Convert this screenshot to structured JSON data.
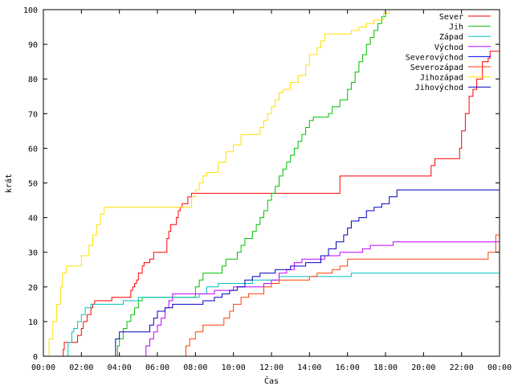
{
  "chart_data": {
    "type": "line",
    "title": "",
    "xlabel": "Čas",
    "ylabel": "krát",
    "xlim": [
      0,
      24
    ],
    "ylim": [
      0,
      100
    ],
    "x_ticks": [
      "00:00",
      "02:00",
      "04:00",
      "06:00",
      "08:00",
      "10:00",
      "12:00",
      "14:00",
      "16:00",
      "18:00",
      "20:00",
      "22:00",
      "00:00"
    ],
    "y_ticks": [
      "0",
      "10",
      "20",
      "30",
      "40",
      "50",
      "60",
      "70",
      "80",
      "90",
      "100"
    ],
    "grid": false,
    "legend_position": "top-right",
    "series": [
      {
        "name": "Sever",
        "color": "#ff0000",
        "x": [
          0.95,
          1.05,
          1.1,
          1.8,
          1.9,
          2.0,
          2.1,
          2.3,
          2.4,
          2.5,
          2.6,
          2.7,
          2.8,
          3.2,
          3.5,
          3.6,
          3.7,
          3.8,
          4.6,
          4.7,
          4.8,
          4.9,
          5.0,
          5.2,
          5.3,
          5.5,
          5.6,
          5.8,
          6.2,
          6.5,
          6.6,
          6.7,
          7.0,
          7.1,
          7.2,
          7.3,
          7.4,
          7.6,
          7.8,
          8.0,
          8.2,
          10.4,
          15.4,
          15.6,
          15.8,
          19.9,
          20.4,
          20.6,
          21.7,
          21.9,
          22.0,
          22.2,
          22.4,
          22.6,
          22.8,
          23.1,
          23.4,
          23.5,
          24.0
        ],
        "y": [
          0,
          2,
          4,
          6,
          6,
          8,
          10,
          12,
          12,
          14,
          15,
          16,
          16,
          16,
          16,
          17,
          17,
          17,
          19,
          20,
          21,
          22,
          24,
          26,
          27,
          27,
          28,
          30,
          30,
          34,
          36,
          38,
          40,
          42,
          43,
          44,
          44,
          46,
          47,
          47,
          47,
          47,
          47,
          52,
          52,
          52,
          55,
          57,
          57,
          60,
          65,
          70,
          75,
          77,
          80,
          85,
          86,
          88,
          88
        ]
      },
      {
        "name": "Jih",
        "color": "#00c000",
        "x": [
          3.75,
          3.9,
          4.0,
          4.2,
          4.4,
          4.6,
          4.8,
          5.0,
          5.2,
          5.4,
          6.0,
          7.8,
          8.0,
          8.2,
          8.4,
          8.6,
          8.8,
          9.4,
          9.6,
          10.0,
          10.2,
          10.4,
          10.6,
          11.0,
          11.2,
          11.4,
          11.6,
          11.8,
          12.0,
          12.2,
          12.4,
          12.6,
          12.8,
          13.0,
          13.2,
          13.4,
          13.6,
          13.8,
          14.0,
          14.2,
          14.4,
          14.6,
          14.8,
          15.0,
          15.2,
          15.6,
          16.0,
          16.2,
          16.4,
          16.6,
          16.8,
          17.0,
          17.2,
          17.4,
          17.6,
          17.8,
          18.0,
          18.2
        ],
        "y": [
          0,
          3,
          5,
          8,
          10,
          12,
          14,
          16,
          17,
          17,
          17,
          17,
          20,
          22,
          24,
          24,
          24,
          26,
          28,
          28,
          30,
          32,
          34,
          36,
          38,
          40,
          42,
          45,
          47,
          49,
          52,
          54,
          56,
          58,
          60,
          62,
          64,
          66,
          68,
          69,
          69,
          69,
          69,
          70,
          72,
          74,
          77,
          79,
          82,
          85,
          87,
          90,
          92,
          94,
          96,
          98,
          100,
          100
        ]
      },
      {
        "name": "Západ",
        "color": "#00c0c0",
        "x": [
          1.1,
          1.3,
          1.5,
          1.6,
          1.8,
          2.0,
          2.2,
          2.5,
          3.0,
          3.4,
          3.8,
          4.2,
          4.6,
          5.0,
          5.4,
          6.0,
          7.0,
          7.6,
          8.2,
          8.6,
          9.2,
          10.0,
          10.4,
          11.0,
          11.6,
          12.4,
          13.0,
          14.0,
          15.0,
          15.6,
          16.0,
          16.2,
          16.6,
          17.0,
          17.4,
          18.0,
          19.0,
          20.0,
          21.0,
          22.0,
          23.0,
          24.0
        ],
        "y": [
          0,
          4,
          7,
          8,
          10,
          12,
          14,
          15,
          15,
          15,
          15,
          16,
          16,
          17,
          17,
          17,
          17,
          17,
          18,
          20,
          21,
          21,
          21,
          22,
          22,
          23,
          23,
          23,
          23,
          23,
          23,
          24,
          24,
          24,
          24,
          24,
          24,
          24,
          24,
          24,
          24,
          24
        ]
      },
      {
        "name": "Východ",
        "color": "#c000ff",
        "x": [
          5.2,
          5.4,
          5.6,
          5.8,
          6.0,
          6.2,
          6.4,
          6.6,
          6.8,
          7.0,
          7.2,
          7.4,
          8.0,
          9.0,
          10.0,
          11.0,
          11.6,
          12.0,
          12.4,
          12.8,
          13.2,
          13.6,
          14.0,
          14.4,
          14.8,
          15.2,
          15.6,
          16.0,
          16.4,
          16.8,
          17.2,
          17.6,
          18.0,
          18.4,
          18.8,
          19.4,
          20.0,
          21.0,
          22.0,
          23.0,
          24.0
        ],
        "y": [
          0,
          3,
          5,
          7,
          9,
          11,
          14,
          16,
          18,
          18,
          18,
          18,
          18,
          19,
          20,
          20,
          21,
          22,
          24,
          25,
          27,
          28,
          28,
          28,
          29,
          29,
          30,
          30,
          30,
          31,
          32,
          32,
          32,
          33,
          33,
          33,
          33,
          33,
          33,
          33,
          33
        ]
      },
      {
        "name": "Severovýchod",
        "color": "#0000ff",
        "x": [
          1.05,
          1.2,
          1.4,
          1.6,
          1.8,
          2.0,
          2.6,
          3.0,
          3.4,
          3.8,
          4.6,
          5.0,
          5.6,
          6.2,
          6.8,
          7.4,
          8.0,
          9.0,
          10.0,
          10.4,
          11.0,
          11.4,
          12.0,
          12.6,
          13.0,
          13.4,
          14.0,
          14.6,
          15.0,
          15.4,
          16.0,
          17.0,
          18.0,
          19.0,
          20.0,
          21.0,
          22.0,
          23.0,
          23.8,
          24.0
        ],
        "y": [
          0,
          0,
          0,
          0,
          0,
          0,
          0,
          0,
          0,
          0,
          0,
          0,
          0,
          0,
          0,
          0,
          0,
          0,
          0,
          0,
          0,
          0,
          0,
          0,
          0,
          0,
          0,
          0,
          0,
          0,
          0,
          0,
          0,
          0,
          0,
          0,
          0,
          0,
          0,
          0
        ]
      },
      {
        "name": "Severozápad",
        "color": "#ff4000",
        "x": [
          7.3,
          7.5,
          7.7,
          8.0,
          8.4,
          8.8,
          9.2,
          9.5,
          9.8,
          10.0,
          10.4,
          10.8,
          11.2,
          11.6,
          12.0,
          12.4,
          12.8,
          13.2,
          13.6,
          14.0,
          14.4,
          14.8,
          15.2,
          15.6,
          16.0,
          16.4,
          16.8,
          17.2,
          17.6,
          18.0,
          19.0,
          20.0,
          21.0,
          22.0,
          22.8,
          23.0,
          23.4,
          23.8,
          24.0
        ],
        "y": [
          0,
          3,
          5,
          7,
          9,
          9,
          9,
          11,
          13,
          15,
          17,
          18,
          18,
          20,
          21,
          22,
          22,
          22,
          22,
          23,
          24,
          24,
          25,
          26,
          28,
          28,
          28,
          28,
          28,
          28,
          28,
          28,
          28,
          28,
          28,
          28,
          30,
          35,
          43
        ]
      },
      {
        "name": "Jihozápad",
        "color": "#ffe000",
        "x": [
          0.05,
          0.3,
          0.5,
          0.7,
          0.9,
          1.0,
          1.2,
          1.6,
          1.9,
          2.0,
          2.2,
          2.4,
          2.6,
          2.8,
          3.0,
          3.2,
          3.6,
          4.0,
          5.0,
          6.0,
          7.0,
          7.6,
          7.8,
          8.0,
          8.2,
          8.4,
          8.6,
          9.0,
          9.2,
          9.6,
          10.0,
          10.4,
          11.2,
          11.4,
          11.6,
          11.8,
          12.0,
          12.2,
          12.4,
          12.6,
          12.8,
          13.0,
          13.4,
          13.8,
          14.0,
          14.4,
          14.6,
          14.8,
          15.0,
          15.2,
          15.6,
          16.0,
          16.2,
          16.6,
          17.0,
          17.4,
          17.6,
          17.9,
          18.2
        ],
        "y": [
          0,
          5,
          10,
          15,
          20,
          24,
          26,
          26,
          26,
          29,
          29,
          32,
          35,
          38,
          41,
          43,
          43,
          43,
          43,
          43,
          43,
          43,
          46,
          48,
          50,
          52,
          53,
          53,
          56,
          59,
          61,
          64,
          64,
          66,
          68,
          70,
          72,
          74,
          76,
          77,
          77,
          79,
          81,
          84,
          87,
          89,
          91,
          93,
          93,
          93,
          93,
          93,
          94,
          95,
          96,
          97,
          97,
          99,
          100
        ]
      },
      {
        "name": "Jihovýchod",
        "color": "#0000c0",
        "x": [
          3.6,
          3.8,
          4.0,
          4.4,
          4.8,
          5.2,
          5.6,
          5.8,
          6.0,
          6.4,
          6.8,
          7.2,
          7.6,
          8.0,
          8.4,
          8.8,
          9.0,
          9.4,
          9.8,
          10.2,
          10.6,
          11.0,
          11.4,
          11.8,
          12.2,
          12.6,
          13.0,
          13.4,
          13.8,
          14.2,
          14.6,
          15.0,
          15.4,
          15.8,
          16.0,
          16.2,
          16.6,
          17.0,
          17.4,
          17.8,
          18.2,
          18.6,
          19.0,
          20.0,
          21.0,
          22.0,
          23.0,
          24.0
        ],
        "y": [
          0,
          5,
          7,
          7,
          7,
          7,
          9,
          11,
          13,
          14,
          15,
          15,
          15,
          15,
          16,
          16,
          17,
          18,
          19,
          20,
          22,
          23,
          24,
          24,
          25,
          25,
          26,
          26,
          27,
          27,
          29,
          31,
          33,
          35,
          37,
          39,
          40,
          42,
          43,
          44,
          46,
          48,
          48,
          48,
          48,
          48,
          48,
          48
        ]
      }
    ]
  }
}
